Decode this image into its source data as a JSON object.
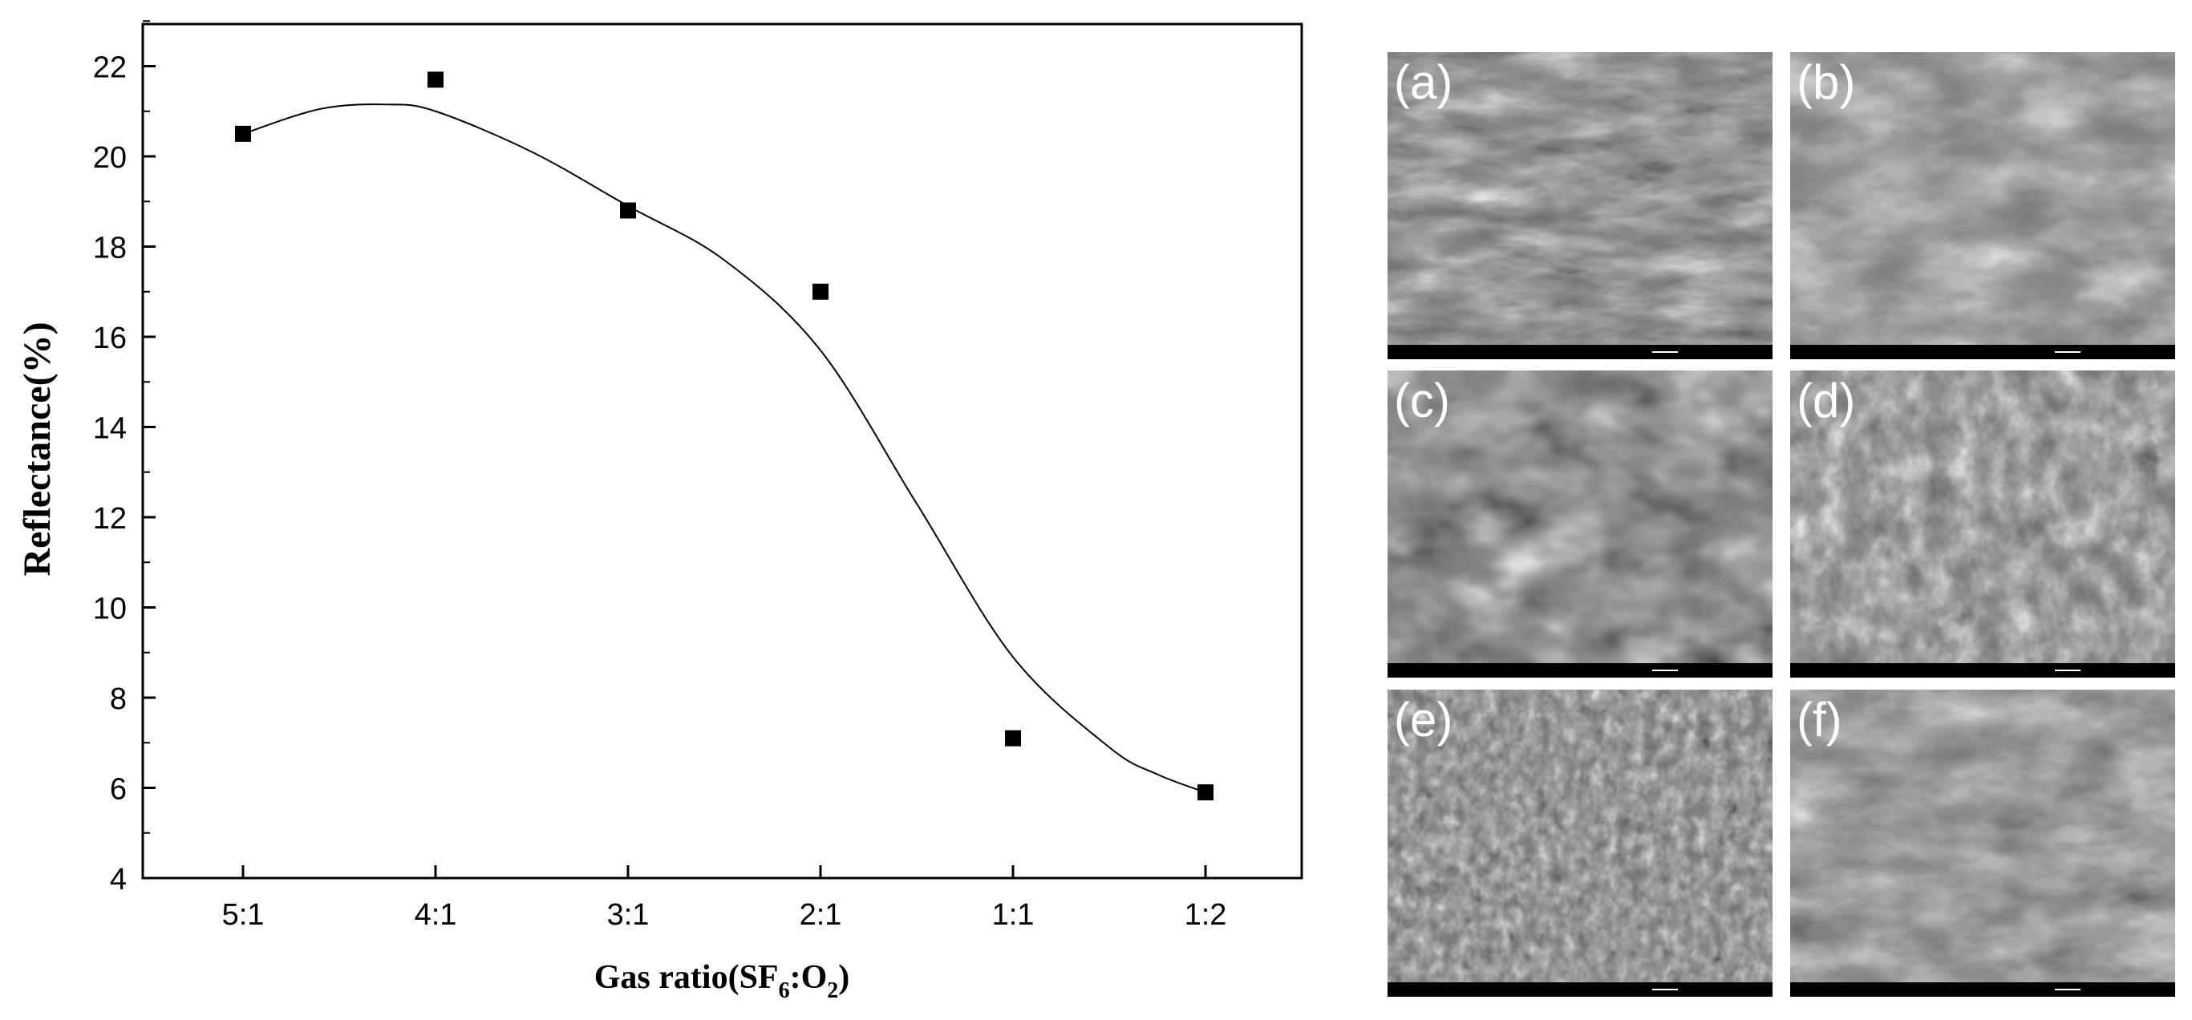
{
  "chart_data": {
    "type": "scatter",
    "categories": [
      "5:1",
      "4:1",
      "3:1",
      "2:1",
      "1:1",
      "1:2"
    ],
    "values": [
      20.5,
      21.7,
      18.8,
      17.0,
      7.1,
      5.9
    ],
    "fit_curve": {
      "x": [
        0,
        0.4,
        0.75,
        1.0,
        1.5,
        2.0,
        2.5,
        3.0,
        3.5,
        4.0,
        4.5,
        4.75,
        5.0
      ],
      "y": [
        20.5,
        21.05,
        21.15,
        21.0,
        20.1,
        18.9,
        17.7,
        15.7,
        12.3,
        8.9,
        6.9,
        6.3,
        5.9
      ]
    },
    "ylim": [
      4,
      23
    ],
    "yticks": [
      4,
      6,
      8,
      10,
      12,
      14,
      16,
      18,
      20,
      22
    ],
    "ylabel": "Reflectance(%)",
    "xlabel_parts": [
      "Gas ratio(SF",
      "6",
      ":O",
      "2",
      ")"
    ],
    "marker_color": "#000000",
    "grid": false,
    "legend": "none"
  },
  "panels": [
    "(a)",
    "(b)",
    "(c)",
    "(d)",
    "(e)",
    "(f)"
  ],
  "panel_textures": [
    "ridged-cones",
    "broad-cones",
    "large-pyramids",
    "dense-pyramids",
    "fine-spikes",
    "broad-pyramids"
  ]
}
